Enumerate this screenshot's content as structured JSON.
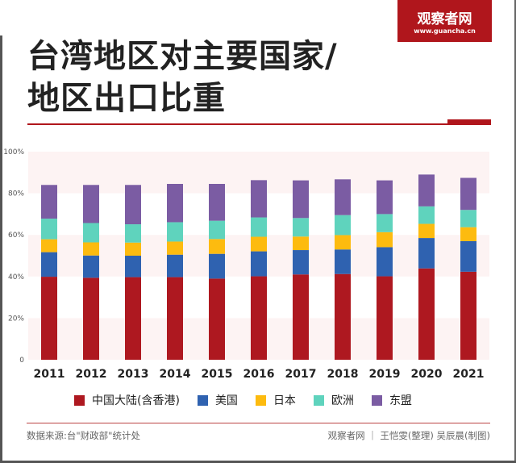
{
  "logo": {
    "name": "观察者网",
    "url": "www.guancha.cn"
  },
  "title": {
    "line1": "台湾地区对主要国家/",
    "line2": "地区出口比重"
  },
  "colors": {
    "brand": "#b0161c"
  },
  "chart_data": {
    "type": "bar",
    "stacked": true,
    "categories": [
      "2011",
      "2012",
      "2013",
      "2014",
      "2015",
      "2016",
      "2017",
      "2018",
      "2019",
      "2020",
      "2021"
    ],
    "ylim": [
      0,
      100
    ],
    "yticks": [
      "0",
      "20%",
      "40%",
      "60%",
      "80%",
      "100%"
    ],
    "grid": "alternating bands",
    "legend_position": "bottom",
    "series": [
      {
        "name": "中国大陆(含香港)",
        "color": "#ae1820",
        "values": [
          39.9,
          39.4,
          39.7,
          39.7,
          39.0,
          40.1,
          41.0,
          41.2,
          40.1,
          43.9,
          42.3
        ]
      },
      {
        "name": "美国",
        "color": "#2f62b0",
        "values": [
          11.8,
          10.7,
          10.3,
          10.8,
          11.9,
          12.0,
          11.7,
          11.8,
          14.0,
          14.6,
          14.7
        ]
      },
      {
        "name": "日本",
        "color": "#fdbb0f",
        "values": [
          6.2,
          6.3,
          6.3,
          6.3,
          7.1,
          7.0,
          6.5,
          6.9,
          7.2,
          6.8,
          6.7
        ]
      },
      {
        "name": "欧洲",
        "color": "#5fd3bd",
        "values": [
          9.9,
          9.3,
          8.8,
          9.3,
          8.8,
          9.3,
          8.9,
          9.6,
          8.7,
          8.4,
          8.3
        ]
      },
      {
        "name": "东盟",
        "color": "#7b5ca3",
        "values": [
          16.2,
          18.3,
          18.9,
          18.4,
          17.7,
          17.9,
          18.1,
          17.2,
          16.2,
          15.3,
          15.4
        ]
      }
    ]
  },
  "footer": {
    "source": "数据来源:台\"财政部\"统计处",
    "credit": "观察者网 ｜ 王恺雯(整理) 吴辰晨(制图)"
  }
}
